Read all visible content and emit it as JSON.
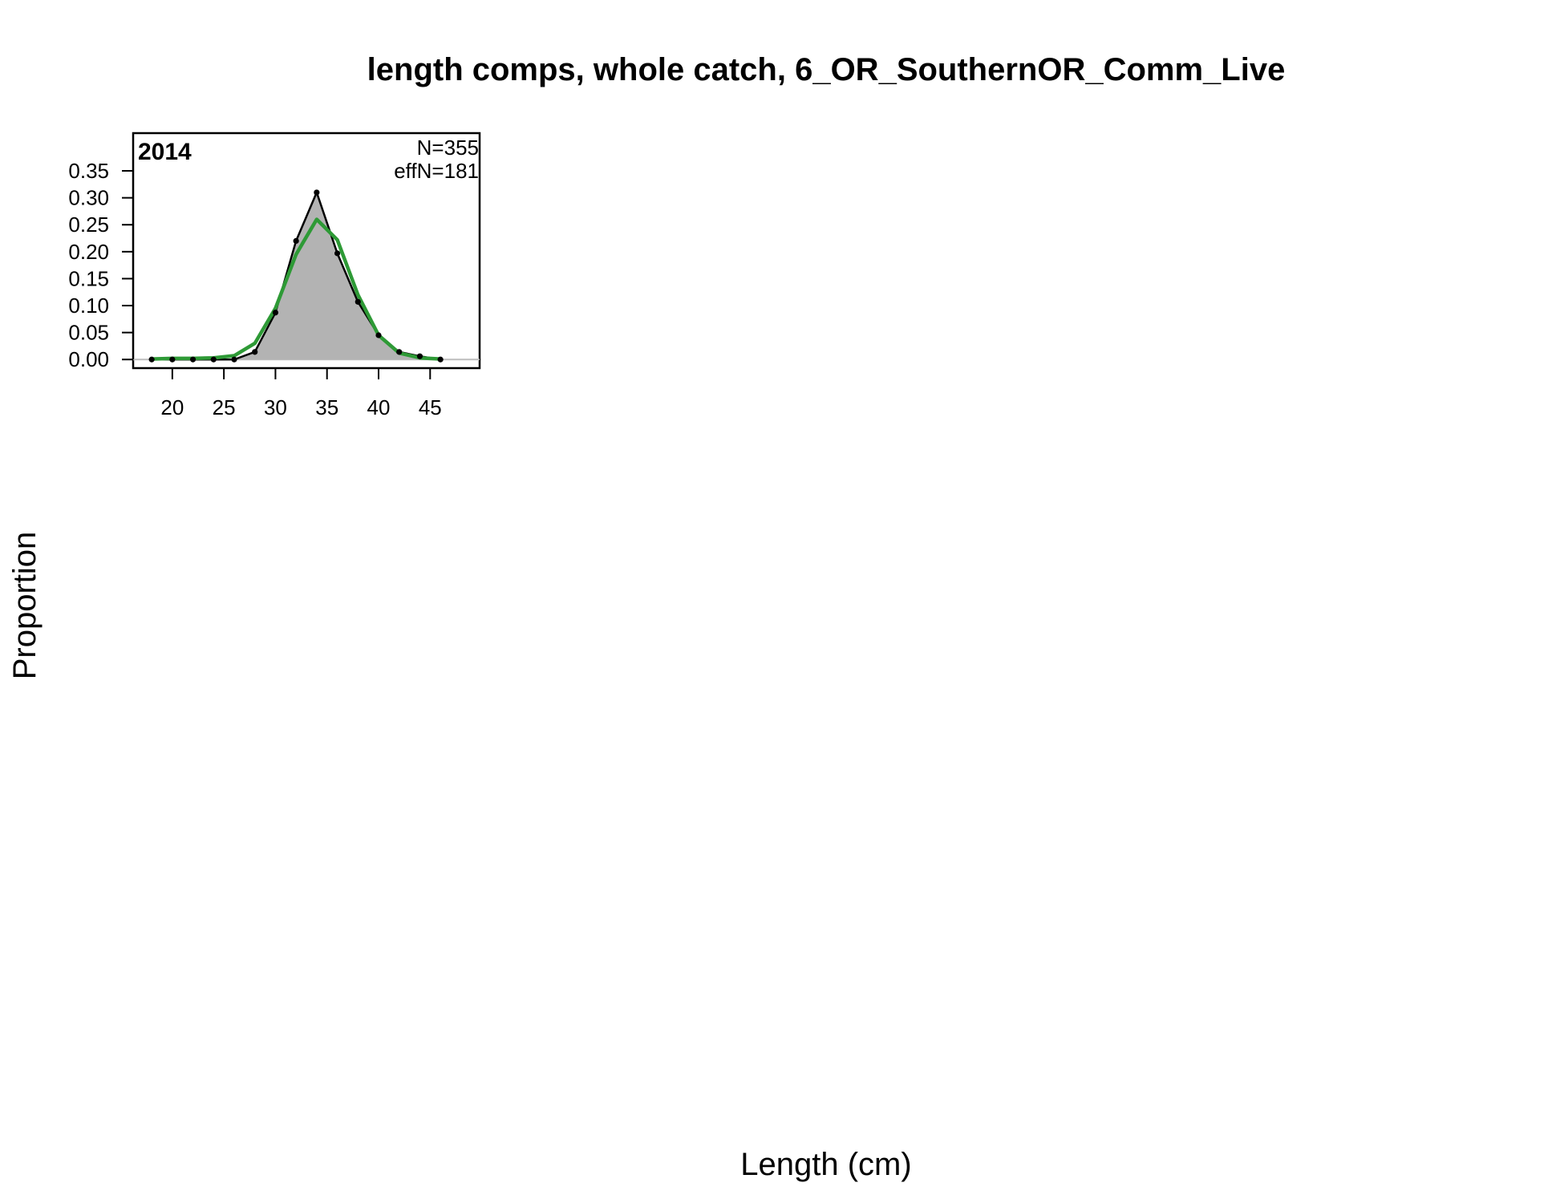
{
  "chart_data": {
    "type": "line",
    "title": "length comps, whole catch, 6_OR_SouthernOR_Comm_Live",
    "xlabel": "Length (cm)",
    "ylabel": "Proportion",
    "panel": {
      "label": "2014",
      "n_text": "N=355",
      "effn_text": "effN=181"
    },
    "x": [
      18,
      20,
      22,
      24,
      26,
      28,
      30,
      32,
      34,
      36,
      38,
      40,
      42,
      44,
      46
    ],
    "series": [
      {
        "role": "observed",
        "style": "filled area with points",
        "color": "#000000",
        "fill": "#b3b3b3",
        "values": [
          0.0,
          0.0,
          0.0,
          0.0,
          0.0,
          0.014,
          0.087,
          0.22,
          0.31,
          0.197,
          0.107,
          0.045,
          0.014,
          0.006,
          0.0
        ]
      },
      {
        "role": "expected",
        "style": "line",
        "color": "#2e9a36",
        "values": [
          0.001,
          0.002,
          0.002,
          0.003,
          0.007,
          0.03,
          0.095,
          0.195,
          0.26,
          0.222,
          0.12,
          0.045,
          0.012,
          0.003,
          0.001
        ]
      }
    ],
    "xticks": [
      20,
      25,
      30,
      35,
      40,
      45
    ],
    "yticks": [
      0.0,
      0.05,
      0.1,
      0.15,
      0.2,
      0.25,
      0.3,
      0.35
    ],
    "ytick_labels": [
      "0.00",
      "0.05",
      "0.10",
      "0.15",
      "0.20",
      "0.25",
      "0.30",
      "0.35"
    ],
    "xlim": [
      16.2,
      49.8
    ],
    "ylim": [
      -0.016,
      0.42
    ],
    "grid": false,
    "legend": "none"
  }
}
